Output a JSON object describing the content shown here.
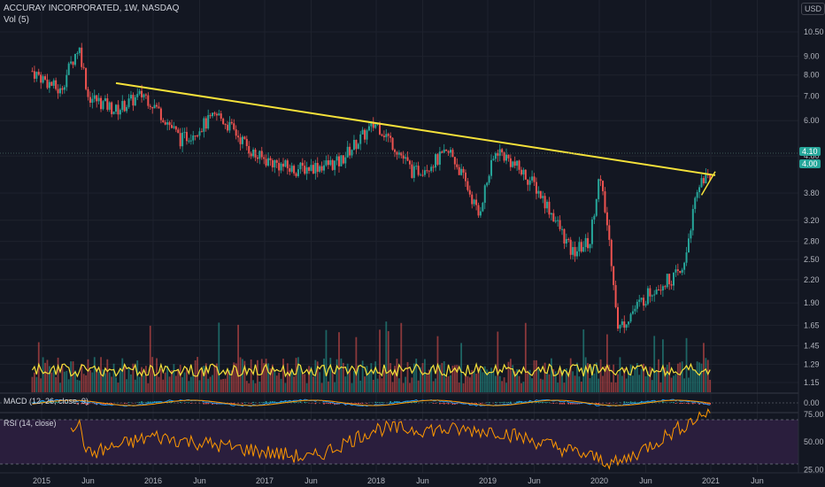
{
  "header": {
    "title": "ACCURAY INCORPORATED, 1W, NASDAQ",
    "vol_label": "Vol (5)",
    "currency_button": "USD",
    "macd_label": "MACD (12, 26, close, 9)",
    "rsi_label": "RSI (14, close)"
  },
  "price_badges": {
    "last": "4.10",
    "ma": "4.00"
  },
  "colors": {
    "background": "#131722",
    "up": "#26a69a",
    "down": "#ef5350",
    "trendline": "#f5e13a",
    "volume_ma": "#f5e13a",
    "macd": "#2196f3",
    "signal": "#ff9800",
    "rsi_line": "#ff9800",
    "rsi_band": "#2a1e3d"
  },
  "chart_data": {
    "type": "candlestick",
    "price_axis_ticks": [
      "10.50",
      "9.00",
      "8.00",
      "7.00",
      "6.00",
      "4.80",
      "3.80",
      "3.20",
      "2.80",
      "2.50",
      "2.20",
      "1.90",
      "1.65",
      "1.45",
      "1.29",
      "1.15"
    ],
    "macd_axis_ticks": [
      "0.00"
    ],
    "rsi_axis_ticks": [
      "75.00",
      "50.00",
      "25.00"
    ],
    "rsi_bands": [
      70,
      30
    ],
    "time_axis_ticks": [
      "2015",
      "Jun",
      "2016",
      "Jun",
      "2017",
      "Jun",
      "2018",
      "Jun",
      "2019",
      "Jun",
      "2020",
      "Jun",
      "2021",
      "Jun"
    ],
    "close_keypoints": [
      {
        "date": "2014-12",
        "value": 8.2
      },
      {
        "date": "2015-03",
        "value": 7.2
      },
      {
        "date": "2015-05",
        "value": 9.6
      },
      {
        "date": "2015-06",
        "value": 7.0
      },
      {
        "date": "2015-09",
        "value": 6.4
      },
      {
        "date": "2015-12",
        "value": 7.1
      },
      {
        "date": "2016-04",
        "value": 5.3
      },
      {
        "date": "2016-08",
        "value": 6.2
      },
      {
        "date": "2016-12",
        "value": 4.8
      },
      {
        "date": "2017-04",
        "value": 4.4
      },
      {
        "date": "2017-09",
        "value": 4.6
      },
      {
        "date": "2018-01",
        "value": 5.9
      },
      {
        "date": "2018-05",
        "value": 4.3
      },
      {
        "date": "2018-09",
        "value": 4.9
      },
      {
        "date": "2018-12",
        "value": 3.3
      },
      {
        "date": "2019-02",
        "value": 5.0
      },
      {
        "date": "2019-06",
        "value": 4.0
      },
      {
        "date": "2019-10",
        "value": 2.6
      },
      {
        "date": "2019-12",
        "value": 2.8
      },
      {
        "date": "2020-01",
        "value": 4.2
      },
      {
        "date": "2020-03",
        "value": 1.6
      },
      {
        "date": "2020-07",
        "value": 2.1
      },
      {
        "date": "2020-10",
        "value": 2.3
      },
      {
        "date": "2020-12",
        "value": 4.2
      },
      {
        "date": "2021-01",
        "value": 4.1
      }
    ],
    "trendline": [
      {
        "date": "2015-09",
        "value": 7.6
      },
      {
        "date": "2021-01",
        "value": 4.25
      }
    ],
    "channel_line": [
      {
        "date": "2020-12",
        "value": 3.75
      },
      {
        "date": "2021-01",
        "value": 4.35
      }
    ],
    "rsi_keypoints": [
      {
        "date": "2015-05",
        "value": 66
      },
      {
        "date": "2015-06",
        "value": 39
      },
      {
        "date": "2016-01",
        "value": 55
      },
      {
        "date": "2017-06",
        "value": 35
      },
      {
        "date": "2018-01",
        "value": 62
      },
      {
        "date": "2019-02",
        "value": 60
      },
      {
        "date": "2020-03",
        "value": 30
      },
      {
        "date": "2021-01",
        "value": 79
      }
    ]
  }
}
